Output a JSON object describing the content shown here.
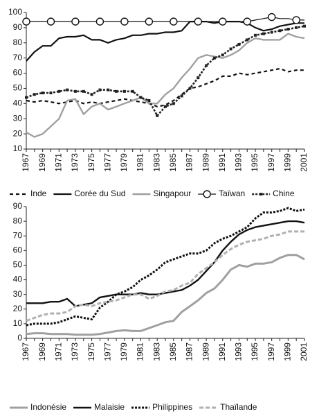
{
  "chart_data": [
    {
      "type": "line",
      "categories": [
        "1967",
        null,
        "1969",
        null,
        "1971",
        null,
        "1973",
        null,
        "1975",
        null,
        "1977",
        null,
        "1979",
        null,
        "1981",
        null,
        "1983",
        null,
        "1985",
        null,
        "1987",
        null,
        "1989",
        null,
        "1991",
        null,
        "1993",
        null,
        "1995",
        null,
        "1997",
        null,
        "1999",
        null,
        "2001"
      ],
      "ylim": [
        10,
        100
      ],
      "yticks": [
        10,
        20,
        30,
        40,
        50,
        60,
        70,
        80,
        90,
        100
      ],
      "series": [
        {
          "name": "Inde",
          "color": "#111111",
          "dash": "5,4",
          "width": 2.2,
          "marker": "none",
          "values": [
            42,
            41,
            42,
            41,
            40,
            41,
            42,
            40,
            41,
            40,
            41,
            42,
            43,
            42,
            41,
            40,
            38,
            39,
            42,
            46,
            50,
            51,
            53,
            55,
            58,
            58,
            60,
            59,
            60,
            61,
            62,
            63,
            61,
            62,
            62
          ]
        },
        {
          "name": "Corée du Sud",
          "color": "#111111",
          "dash": "none",
          "width": 2.2,
          "marker": "none",
          "values": [
            68,
            74,
            78,
            78,
            83,
            84,
            84,
            85,
            82,
            82,
            80,
            82,
            83,
            85,
            85,
            86,
            86,
            87,
            87,
            88,
            94,
            94,
            94,
            93,
            94,
            94,
            94,
            93,
            90,
            88,
            89,
            91,
            92,
            93,
            93
          ]
        },
        {
          "name": "Singapour",
          "color": "#a0a0a0",
          "dash": "none",
          "width": 2.4,
          "marker": "none",
          "values": [
            21,
            18,
            20,
            25,
            30,
            42,
            43,
            33,
            38,
            40,
            36,
            38,
            40,
            42,
            44,
            40,
            40,
            46,
            50,
            57,
            63,
            70,
            72,
            71,
            70,
            72,
            75,
            80,
            83,
            82,
            82,
            82,
            86,
            84,
            83
          ]
        },
        {
          "name": "Taïwan",
          "color": "#111111",
          "dash": "none",
          "width": 1.2,
          "marker": "circle",
          "values": [
            94,
            94,
            94,
            94,
            94,
            94,
            94,
            94,
            94,
            94,
            94,
            94,
            94,
            94,
            94,
            94,
            94,
            94,
            94,
            94,
            94,
            94,
            94,
            94,
            94,
            94,
            94,
            94,
            95,
            96,
            97,
            96,
            96,
            95,
            95
          ]
        },
        {
          "name": "Chine",
          "color": "#222222",
          "dash": "3,2",
          "width": 2.6,
          "marker": "square",
          "values": [
            44,
            46,
            47,
            47,
            48,
            49,
            48,
            48,
            46,
            49,
            49,
            48,
            48,
            48,
            44,
            42,
            32,
            38,
            40,
            45,
            50,
            57,
            65,
            70,
            72,
            76,
            79,
            82,
            85,
            86,
            87,
            88,
            89,
            90,
            91
          ]
        }
      ]
    },
    {
      "type": "line",
      "categories": [
        "1967",
        null,
        "1969",
        null,
        "1971",
        null,
        "1973",
        null,
        "1975",
        null,
        "1977",
        null,
        "1979",
        null,
        "1981",
        null,
        "1983",
        null,
        "1985",
        null,
        "1987",
        null,
        "1989",
        null,
        "1991",
        null,
        "1993",
        null,
        "1995",
        null,
        "1997",
        null,
        "1999",
        null,
        "2001"
      ],
      "ylim": [
        0,
        90
      ],
      "yticks": [
        0,
        10,
        20,
        30,
        40,
        50,
        60,
        70,
        80,
        90
      ],
      "series": [
        {
          "name": "Indonésie",
          "color": "#a0a0a0",
          "dash": "none",
          "width": 3,
          "marker": "none",
          "values": [
            3,
            3.5,
            3.5,
            3,
            3,
            3,
            2.5,
            2.5,
            2.5,
            3,
            4,
            5,
            5.5,
            5,
            5,
            7,
            9,
            11,
            12,
            18,
            22,
            26,
            31,
            34,
            40,
            47,
            50,
            49,
            51,
            51,
            52,
            55,
            57,
            57,
            54
          ]
        },
        {
          "name": "Malaisie",
          "color": "#111111",
          "dash": "none",
          "width": 2.4,
          "marker": "none",
          "values": [
            24,
            24,
            24,
            25,
            25,
            27,
            22,
            23,
            24,
            28,
            29,
            30,
            30,
            30,
            31,
            30,
            30,
            31,
            32,
            33,
            36,
            40,
            46,
            52,
            60,
            66,
            71,
            74,
            76,
            77,
            78,
            79,
            80,
            80,
            79
          ]
        },
        {
          "name": "Philippines",
          "color": "#111111",
          "dash": "3,2",
          "width": 3,
          "marker": "none",
          "values": [
            9,
            10,
            10,
            10,
            11,
            13,
            15,
            14,
            13,
            21,
            25,
            30,
            32,
            35,
            40,
            43,
            47,
            52,
            54,
            56,
            58,
            58,
            60,
            65,
            68,
            70,
            73,
            76,
            82,
            86,
            86,
            87,
            89,
            87,
            88
          ]
        },
        {
          "name": "Thaïlande",
          "color": "#b0b0b0",
          "dash": "6,3",
          "width": 3,
          "marker": "none",
          "values": [
            12,
            14,
            16,
            17,
            17,
            18,
            22,
            23,
            22,
            24,
            25,
            26,
            28,
            30,
            30,
            27,
            29,
            32,
            33,
            36,
            38,
            44,
            48,
            52,
            57,
            61,
            64,
            66,
            67,
            68,
            70,
            71,
            73,
            73,
            73
          ]
        }
      ]
    }
  ]
}
